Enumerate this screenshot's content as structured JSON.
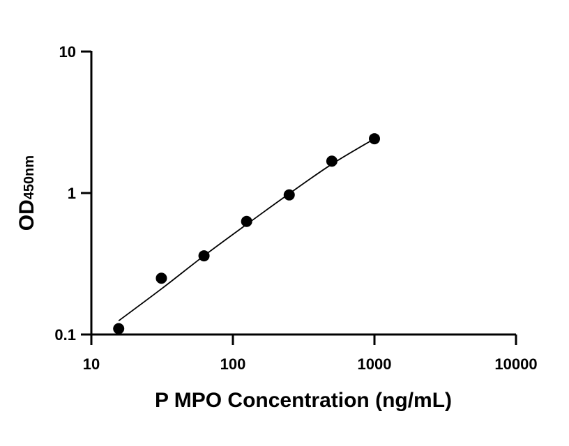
{
  "chart_data": {
    "type": "scatter",
    "xlabel": "P MPO Concentration (ng/mL)",
    "ylabel": "OD",
    "ylabel_subscript": "450nm",
    "x_scale": "log",
    "y_scale": "log",
    "xlim": [
      10,
      10000
    ],
    "ylim": [
      0.1,
      10
    ],
    "x_ticks": [
      "10",
      "100",
      "1000",
      "10000"
    ],
    "y_ticks": [
      "0.1",
      "1",
      "10"
    ],
    "grid": false,
    "legend": "none",
    "series": [
      {
        "marker_color": "#000000",
        "x": [
          15.6,
          31.25,
          62.5,
          125,
          250,
          500,
          1000
        ],
        "y": [
          0.11,
          0.25,
          0.36,
          0.63,
          0.97,
          1.68,
          2.42
        ]
      }
    ],
    "fit_curve": {
      "color": "#000000",
      "x": [
        15.6,
        31.25,
        62.5,
        125,
        250,
        500,
        1000
      ],
      "y": [
        0.125,
        0.21,
        0.36,
        0.6,
        0.99,
        1.6,
        2.42
      ]
    }
  }
}
